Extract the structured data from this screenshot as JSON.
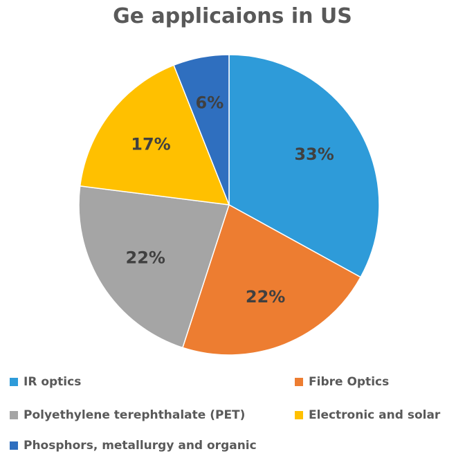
{
  "chart_data": {
    "type": "pie",
    "title": "Ge applicaions in US",
    "legend_position": "bottom",
    "slices": [
      {
        "label": "IR optics",
        "value": 33,
        "display": "33%",
        "color": "#2e9bd9"
      },
      {
        "label": "Fibre Optics",
        "value": 22,
        "display": "22%",
        "color": "#ed7d31"
      },
      {
        "label": "Polyethylene terephthalate (PET)",
        "value": 22,
        "display": "22%",
        "color": "#a5a5a5"
      },
      {
        "label": "Electronic and solar",
        "value": 17,
        "display": "17%",
        "color": "#ffc000"
      },
      {
        "label": "Phosphors, metallurgy and organic",
        "value": 6,
        "display": "6%",
        "color": "#2f6fbf"
      }
    ]
  }
}
